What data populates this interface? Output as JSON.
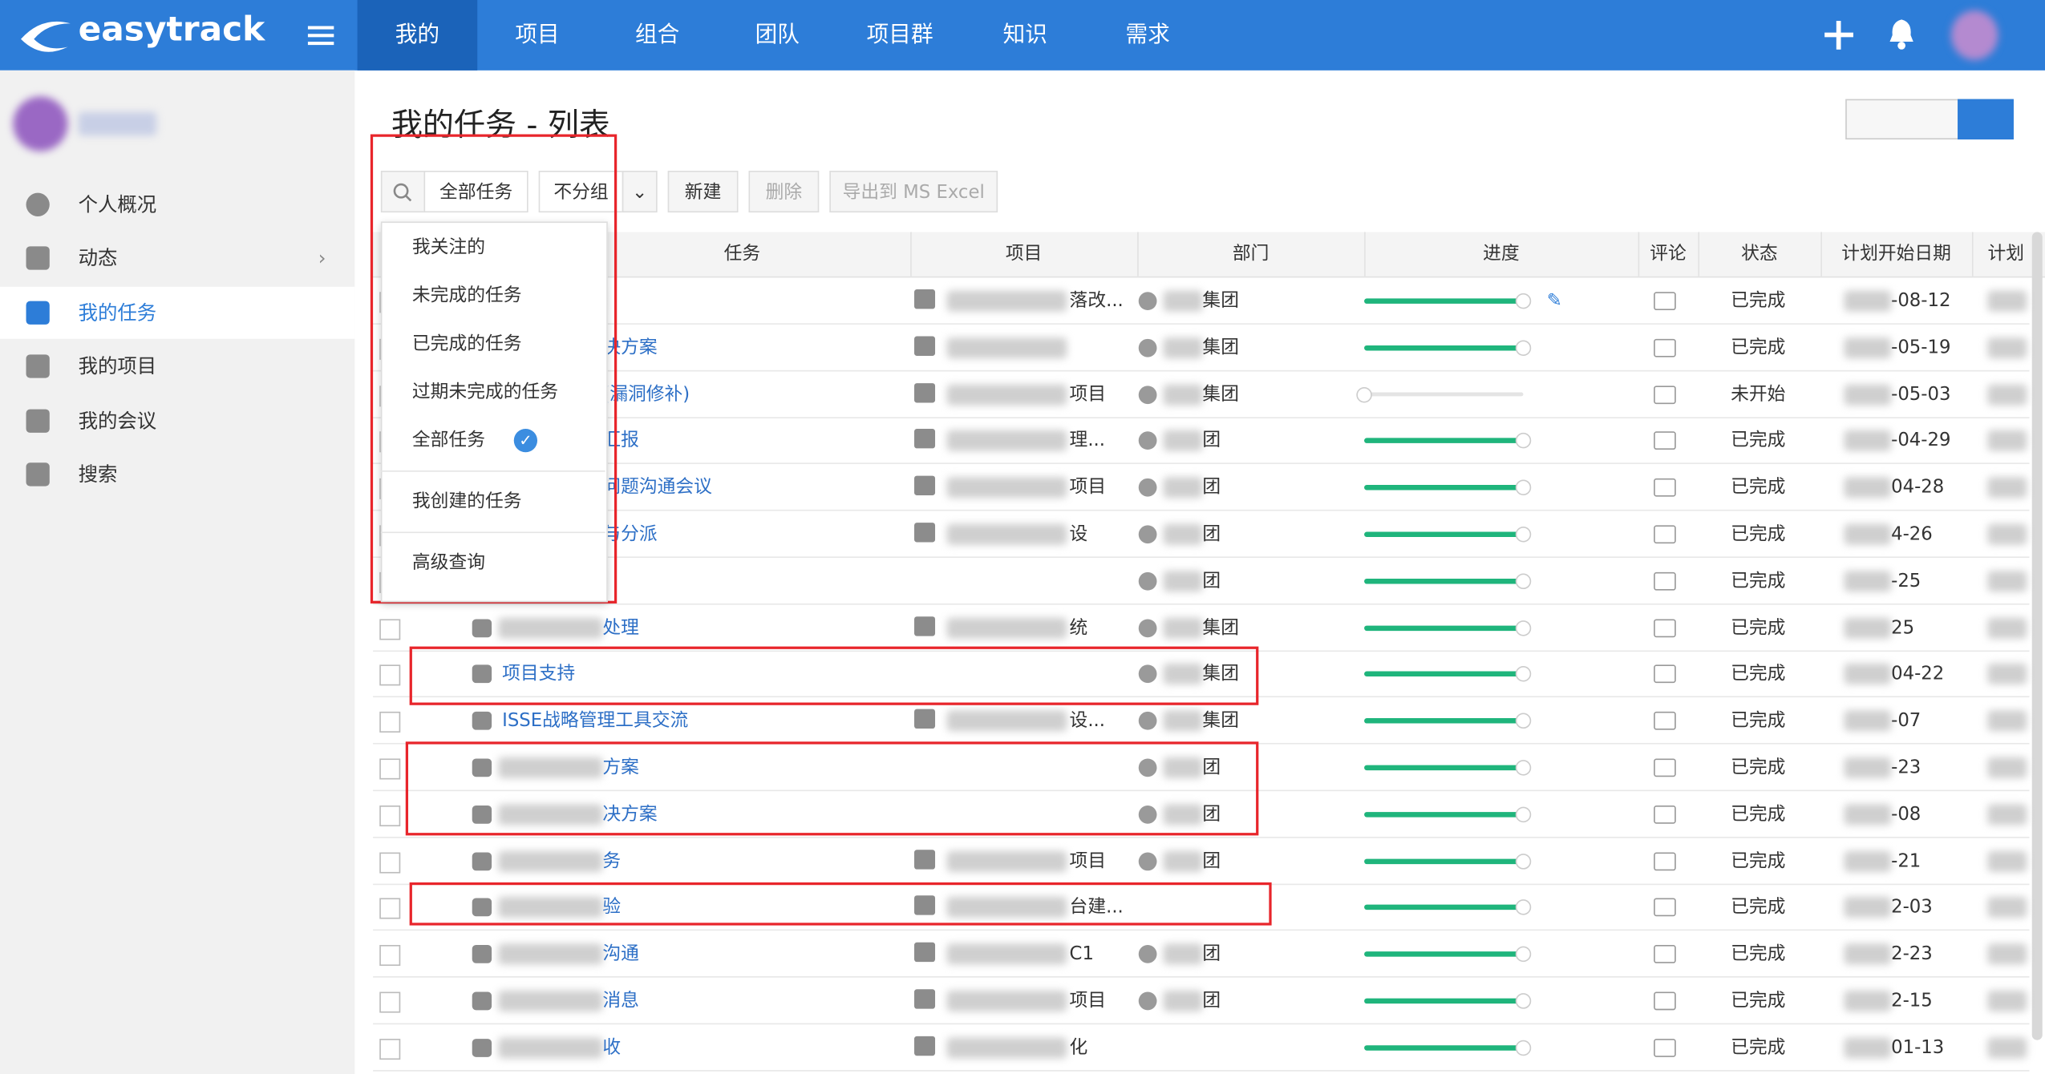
{
  "app": {
    "logo": "easytrack",
    "nav": [
      "我的",
      "项目",
      "组合",
      "团队",
      "项目群",
      "知识",
      "需求"
    ]
  },
  "sidebar": {
    "items": [
      "个人概况",
      "动态",
      "我的任务",
      "我的项目",
      "我的会议",
      "搜索"
    ]
  },
  "page": {
    "title": "我的任务 - 列表"
  },
  "toolbar": {
    "filter": "全部任务",
    "group": "不分组",
    "new": "新建",
    "delete": "删除",
    "export": "导出到 MS Excel"
  },
  "dropdown": {
    "items": [
      "我关注的",
      "未完成的任务",
      "已完成的任务",
      "过期未完成的任务",
      "全部任务",
      "我创建的任务",
      "高级查询"
    ]
  },
  "table": {
    "headers": [
      "任务",
      "项目",
      "部门",
      "进度",
      "评论",
      "状态",
      "计划开始日期",
      "计划"
    ],
    "rows": [
      {
        "task": null,
        "project": "落改...",
        "dept": "集团",
        "progress": 100,
        "status": "已完成",
        "start": "-08-12"
      },
      {
        "task": "决方案",
        "project": null,
        "dept": "集团",
        "progress": 100,
        "status": "已完成",
        "start": "-05-19"
      },
      {
        "task": "(漏洞修补)",
        "project": "项目",
        "dept": "集团",
        "progress": 0,
        "status": "未开始",
        "start": "-05-03"
      },
      {
        "task": "汇报",
        "project": "理...",
        "dept": "团",
        "progress": 100,
        "status": "已完成",
        "start": "-04-29"
      },
      {
        "task": "问题沟通会议",
        "project": "项目",
        "dept": "团",
        "progress": 100,
        "status": "已完成",
        "start": "04-28"
      },
      {
        "task": "与分派",
        "project": "设",
        "dept": "团",
        "progress": 100,
        "status": "已完成",
        "start": "4-26"
      },
      {
        "task": null,
        "project": null,
        "dept": "团",
        "progress": 100,
        "status": "已完成",
        "start": "-25"
      },
      {
        "task": "处理",
        "project": "统",
        "dept": "集团",
        "progress": 100,
        "status": "已完成",
        "start": "25"
      },
      {
        "task": "项目支持",
        "project": null,
        "dept": "集团",
        "progress": 100,
        "status": "已完成",
        "start": "04-22"
      },
      {
        "task": "ISSE战略管理工具交流",
        "project": "设...",
        "dept": "集团",
        "progress": 100,
        "status": "已完成",
        "start": "-07"
      },
      {
        "task": "方案",
        "project": null,
        "dept": "团",
        "progress": 100,
        "status": "已完成",
        "start": "-23"
      },
      {
        "task": "决方案",
        "project": null,
        "dept": "团",
        "progress": 100,
        "status": "已完成",
        "start": "-08"
      },
      {
        "task": "务",
        "project": "项目",
        "dept": "团",
        "progress": 100,
        "status": "已完成",
        "start": "-21"
      },
      {
        "task": "验",
        "project": "台建...",
        "dept": null,
        "progress": 100,
        "status": "已完成",
        "start": "2-03"
      },
      {
        "task": "沟通",
        "project": "C1",
        "dept": "团",
        "progress": 100,
        "status": "已完成",
        "start": "2-23"
      },
      {
        "task": "消息",
        "project": "项目",
        "dept": "团",
        "progress": 100,
        "status": "已完成",
        "start": "2-15"
      },
      {
        "task": "收",
        "project": "化",
        "dept": null,
        "progress": 100,
        "status": "已完成",
        "start": "01-13"
      }
    ]
  }
}
